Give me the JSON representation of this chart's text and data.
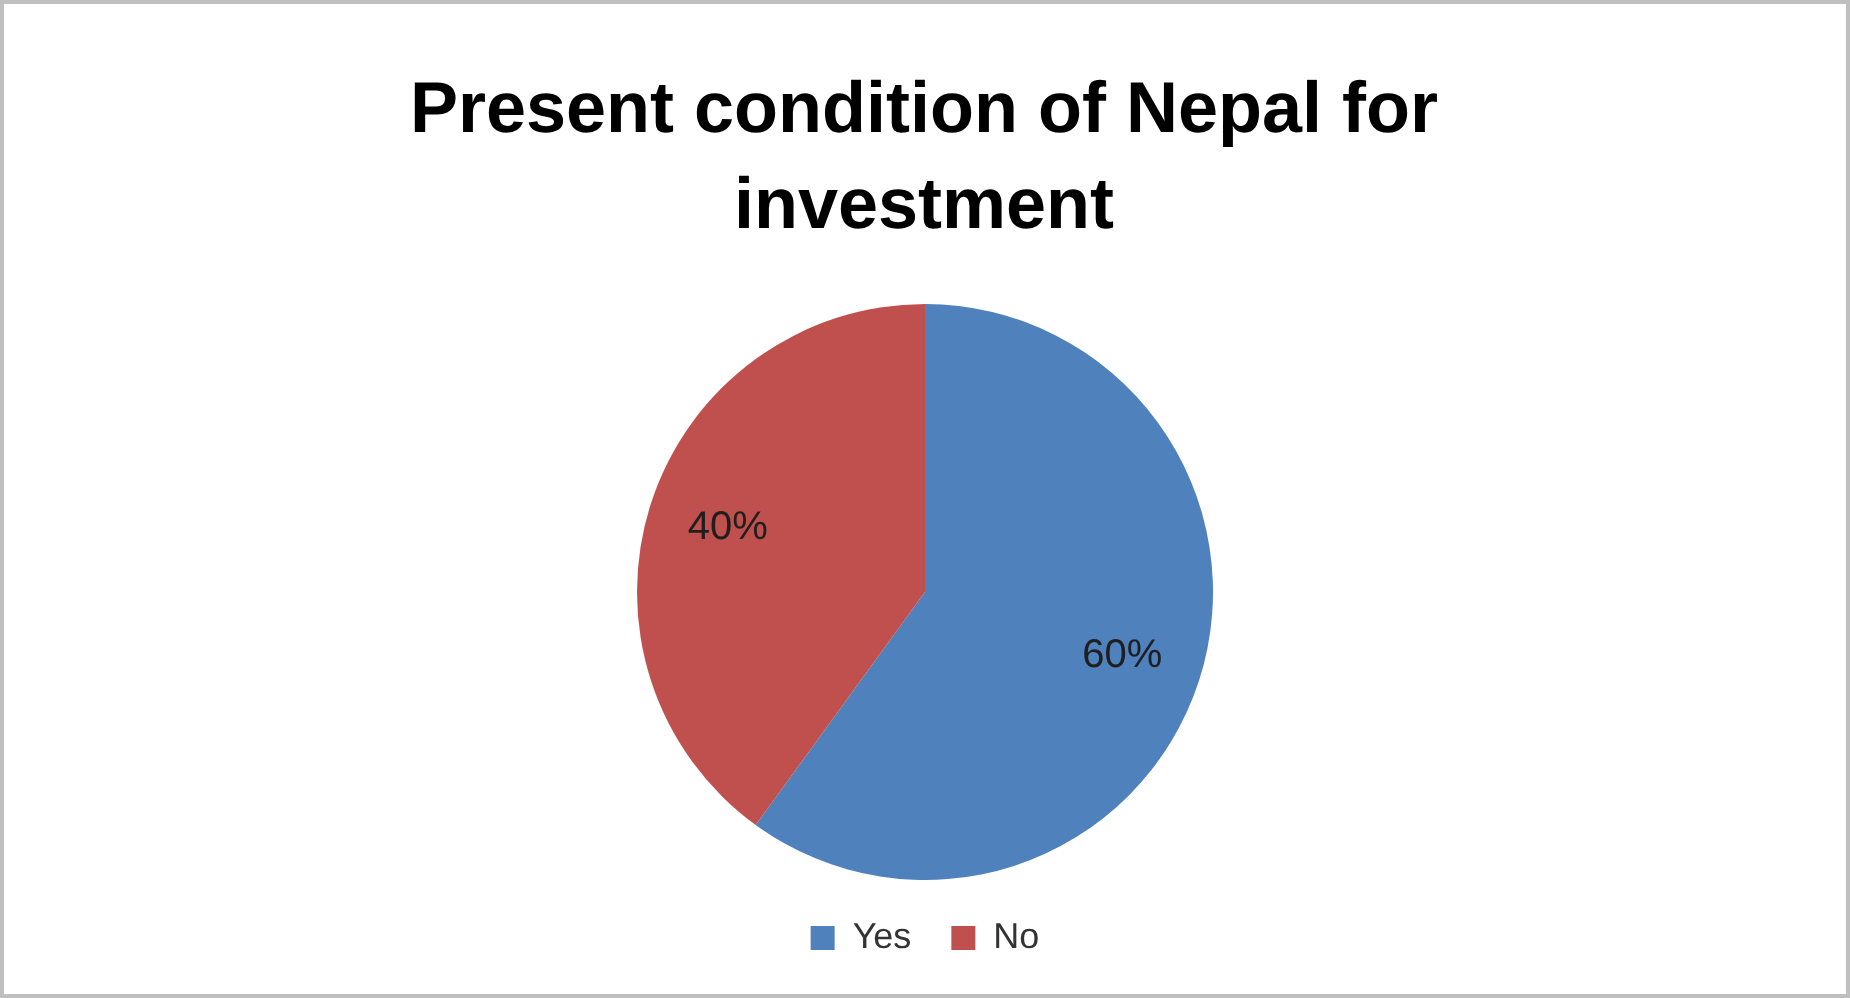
{
  "chart_data": {
    "type": "pie",
    "title": "Present condition of Nepal for investment",
    "categories": [
      "Yes",
      "No"
    ],
    "values": [
      60,
      40
    ],
    "colors": [
      "#4f81bd",
      "#c0504d"
    ],
    "value_labels": [
      "60%",
      "40%"
    ],
    "legend": "bottom"
  }
}
